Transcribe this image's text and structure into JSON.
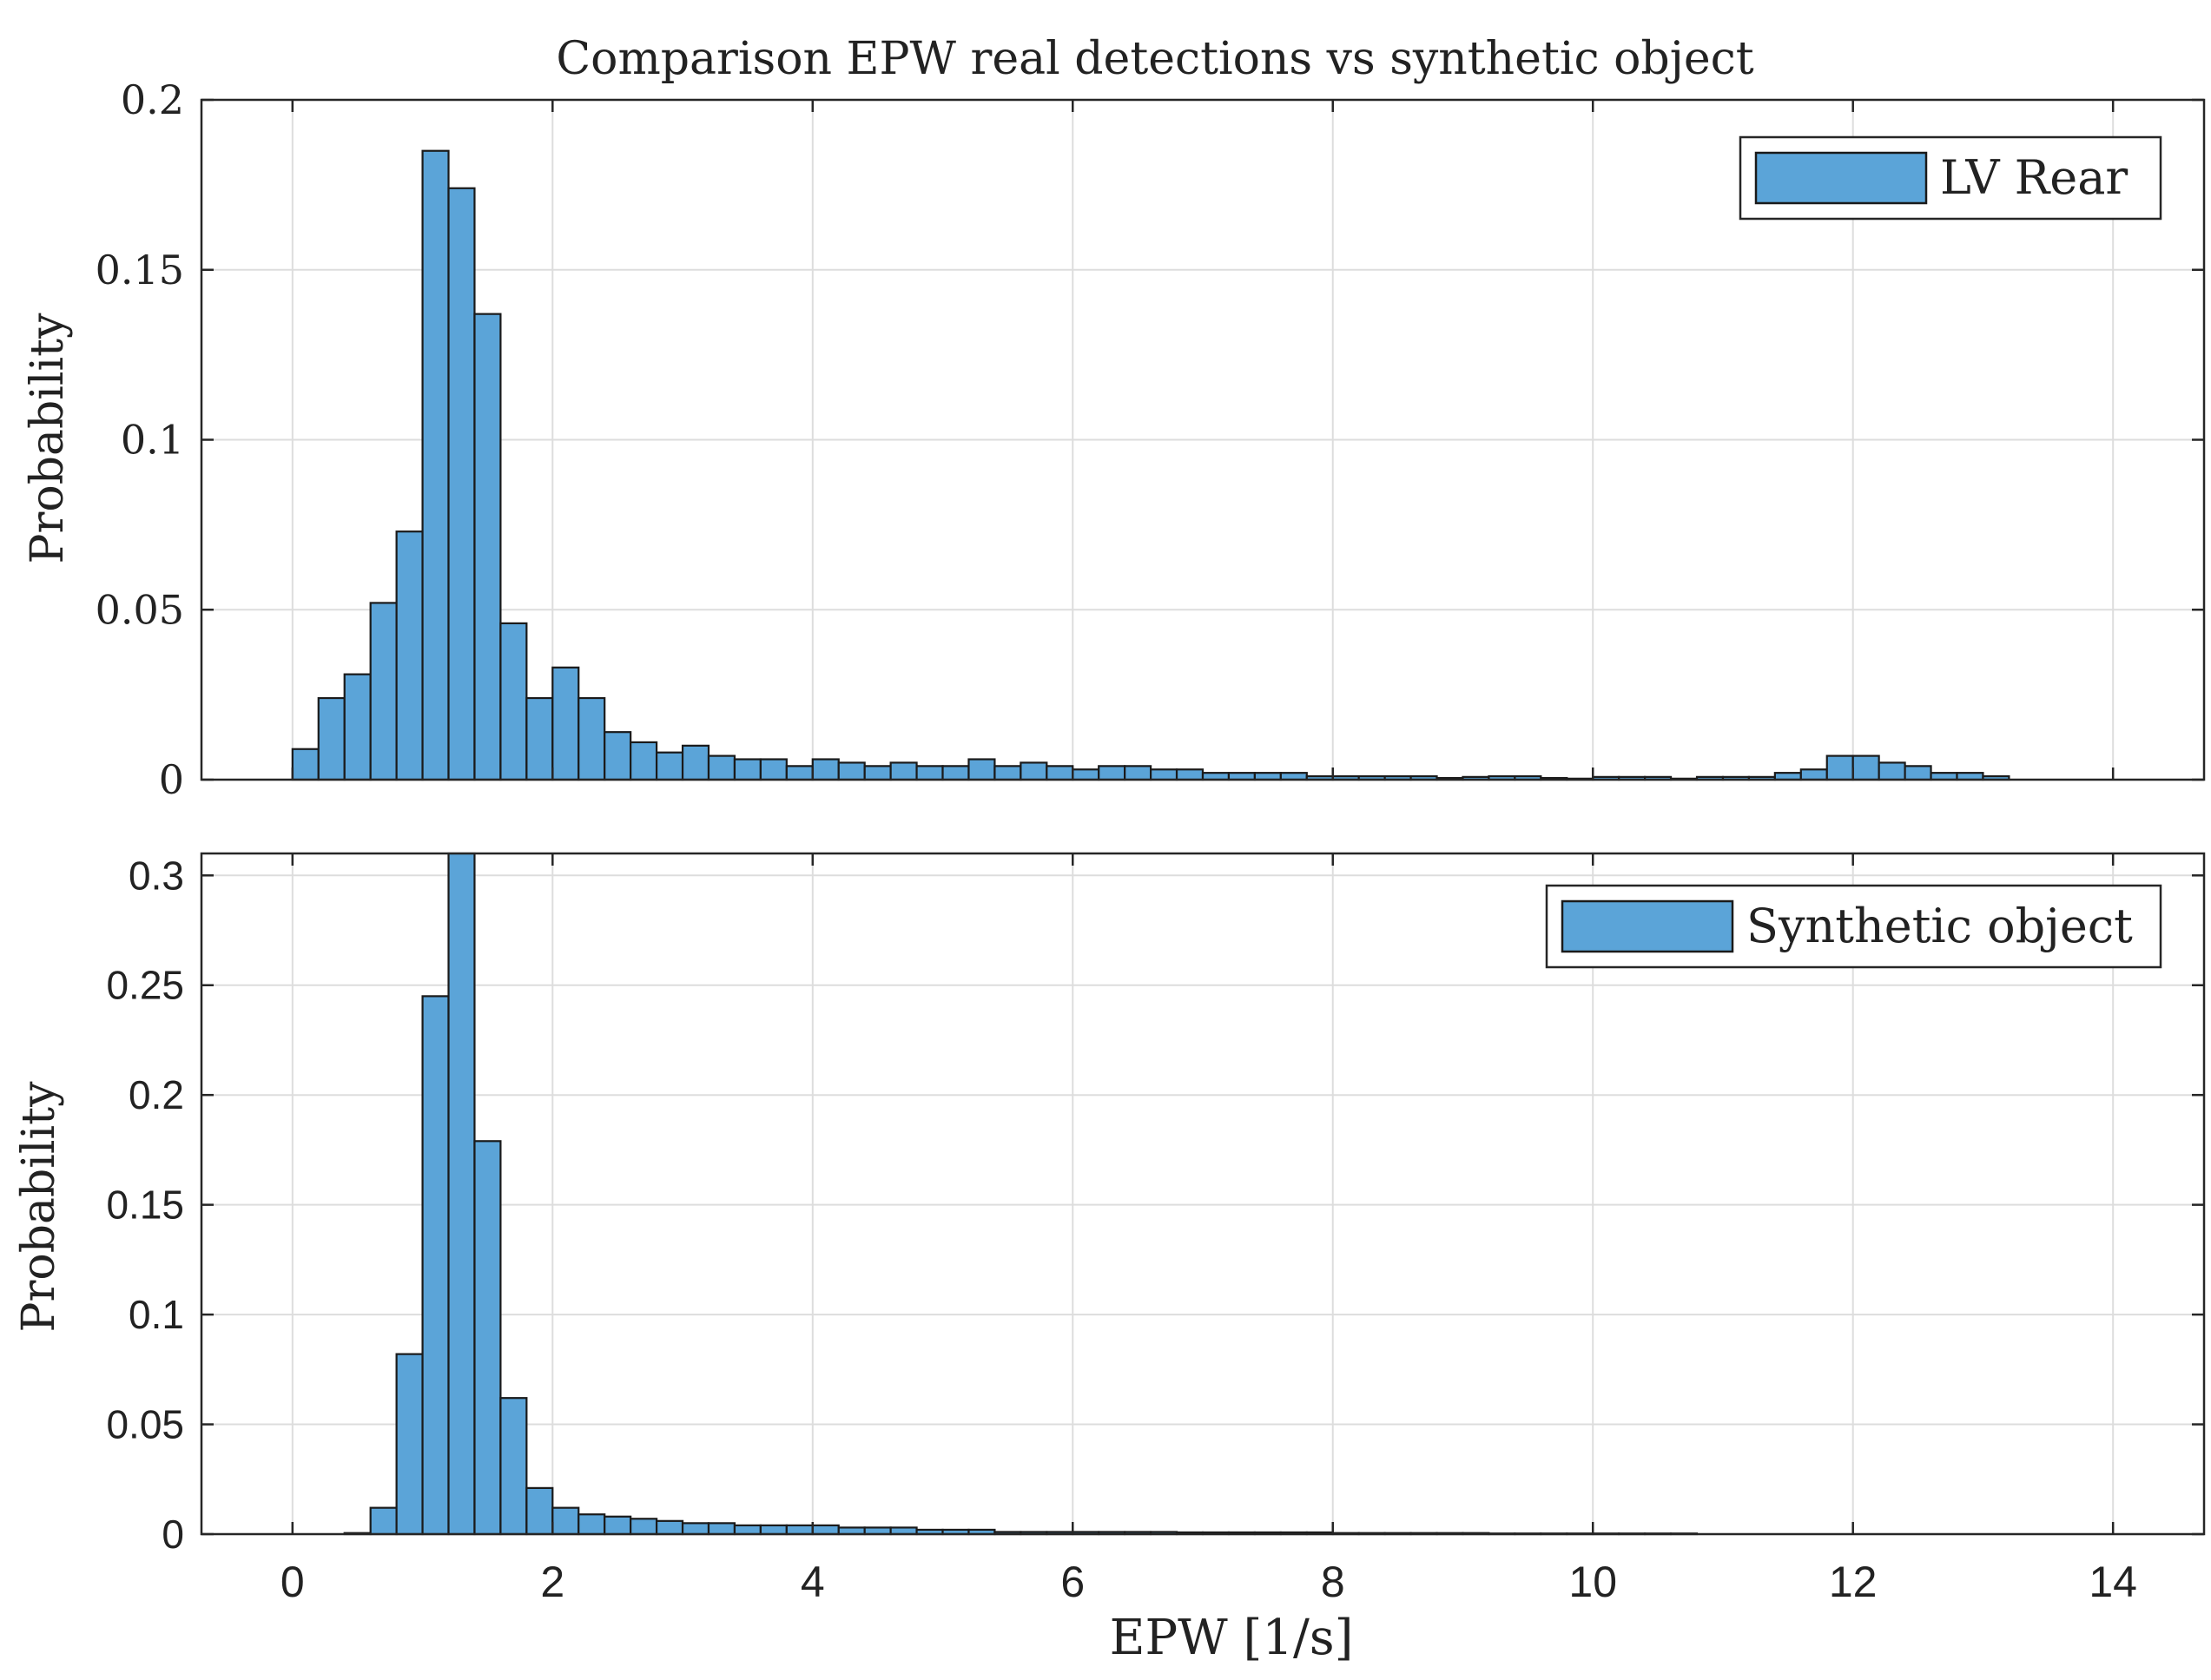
{
  "chart_data": [
    {
      "type": "bar",
      "title": "Comparison EPW real detections vs synthetic object",
      "xlabel": "",
      "ylabel": "Probability",
      "xlim": [
        -0.7,
        14.7
      ],
      "ylim": [
        0,
        0.2
      ],
      "grid": true,
      "legend_position": "top-right",
      "xticks": [
        0,
        2,
        4,
        6,
        8,
        10,
        12,
        14
      ],
      "yticks": [
        0,
        0.05,
        0.1,
        0.15,
        0.2
      ],
      "xtick_labels": [],
      "ytick_labels": [
        "0",
        "0.05",
        "0.1",
        "0.15",
        "0.2"
      ],
      "bin_start": 0.0,
      "bin_width": 0.2,
      "series": [
        {
          "name": "LV Rear",
          "color": "#5ba4d8",
          "values": [
            0.009,
            0.024,
            0.031,
            0.052,
            0.073,
            0.185,
            0.174,
            0.137,
            0.046,
            0.024,
            0.033,
            0.024,
            0.014,
            0.011,
            0.008,
            0.01,
            0.007,
            0.006,
            0.006,
            0.004,
            0.006,
            0.005,
            0.004,
            0.005,
            0.004,
            0.004,
            0.006,
            0.004,
            0.005,
            0.004,
            0.003,
            0.004,
            0.004,
            0.003,
            0.003,
            0.002,
            0.002,
            0.002,
            0.002,
            0.001,
            0.001,
            0.001,
            0.001,
            0.001,
            0.0005,
            0.0008,
            0.001,
            0.001,
            0.0005,
            0.0003,
            0.0008,
            0.0008,
            0.0008,
            0.0003,
            0.0008,
            0.0008,
            0.0008,
            0.002,
            0.003,
            0.007,
            0.007,
            0.005,
            0.004,
            0.002,
            0.002,
            0.001,
            0.0,
            0.0,
            0.0,
            0.0,
            0.0,
            0.0
          ]
        }
      ]
    },
    {
      "type": "bar",
      "title": "",
      "xlabel": "EPW [1/s]",
      "ylabel": "Probability",
      "xlim": [
        -0.7,
        14.7
      ],
      "ylim": [
        0,
        0.31
      ],
      "grid": true,
      "legend_position": "top-right",
      "xticks": [
        0,
        2,
        4,
        6,
        8,
        10,
        12,
        14
      ],
      "yticks": [
        0,
        0.05,
        0.1,
        0.15,
        0.2,
        0.25,
        0.3
      ],
      "xtick_labels": [
        "0",
        "2",
        "4",
        "6",
        "8",
        "10",
        "12",
        "14"
      ],
      "ytick_labels": [
        "0",
        "0.05",
        "0.1",
        "0.15",
        "0.2",
        "0.25",
        "0.3"
      ],
      "bin_start": 0.0,
      "bin_width": 0.2,
      "series": [
        {
          "name": "Synthetic object",
          "color": "#5ba4d8",
          "values": [
            0.0,
            0.0,
            0.0005,
            0.012,
            0.082,
            0.245,
            0.315,
            0.179,
            0.062,
            0.021,
            0.012,
            0.009,
            0.008,
            0.007,
            0.006,
            0.005,
            0.005,
            0.004,
            0.004,
            0.004,
            0.004,
            0.003,
            0.003,
            0.003,
            0.002,
            0.002,
            0.002,
            0.001,
            0.001,
            0.001,
            0.001,
            0.001,
            0.001,
            0.001,
            0.0008,
            0.0008,
            0.0008,
            0.0008,
            0.0008,
            0.0008,
            0.0005,
            0.0005,
            0.0005,
            0.0005,
            0.0005,
            0.0005,
            0.0003,
            0.0003,
            0.0003,
            0.0003,
            0.0003,
            0.0003,
            0.0003,
            0.0003,
            0.0,
            0.0,
            0.0,
            0.0,
            0.0,
            0.0,
            0.0,
            0.0,
            0.0,
            0.0,
            0.0,
            0.0,
            0.0,
            0.0,
            0.0,
            0.0,
            0.0,
            0.0
          ]
        }
      ]
    }
  ]
}
